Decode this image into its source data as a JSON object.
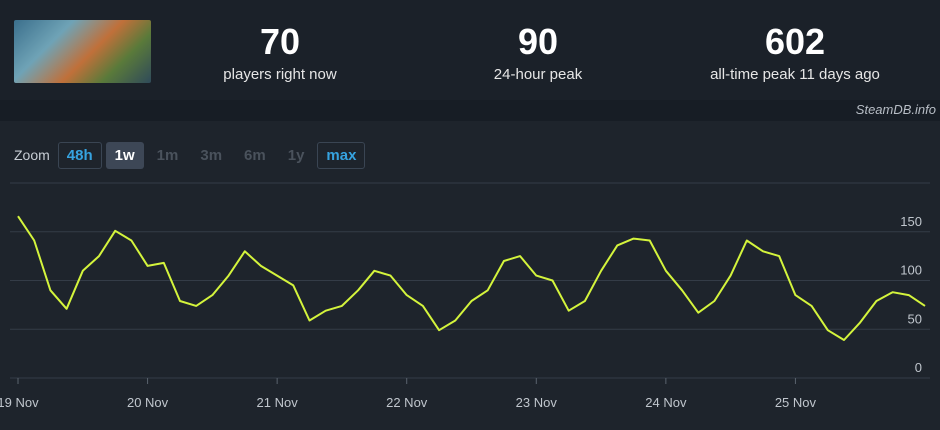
{
  "header": {
    "stats": [
      {
        "value": "70",
        "label": "players right now"
      },
      {
        "value": "90",
        "label": "24-hour peak"
      },
      {
        "value": "602",
        "label": "all-time peak 11 days ago"
      }
    ],
    "watermark": "SteamDB.info"
  },
  "zoom": {
    "label": "Zoom",
    "options": [
      "48h",
      "1w",
      "1m",
      "3m",
      "6m",
      "1y",
      "max"
    ]
  },
  "chart_data": {
    "type": "line",
    "categories": [
      "19 Nov",
      null,
      null,
      null,
      null,
      null,
      null,
      null,
      "20 Nov",
      null,
      null,
      null,
      null,
      null,
      null,
      null,
      "21 Nov",
      null,
      null,
      null,
      null,
      null,
      null,
      null,
      "22 Nov",
      null,
      null,
      null,
      null,
      null,
      null,
      null,
      "23 Nov",
      null,
      null,
      null,
      null,
      null,
      null,
      null,
      "24 Nov",
      null,
      null,
      null,
      null,
      null,
      null,
      null,
      "25 Nov",
      null,
      null,
      null,
      null,
      null,
      null,
      null,
      null
    ],
    "series": [
      {
        "name": "Players",
        "color": "#d4f43c",
        "values": [
          166,
          141,
          90,
          71,
          110,
          125,
          151,
          141,
          115,
          118,
          79,
          74,
          85,
          105,
          130,
          115,
          105,
          95,
          59,
          69,
          74,
          90,
          110,
          105,
          85,
          74,
          49,
          59,
          79,
          90,
          120,
          125,
          105,
          100,
          69,
          79,
          110,
          136,
          143,
          141,
          110,
          90,
          67,
          79,
          105,
          141,
          130,
          125,
          85,
          74,
          49,
          39,
          57,
          79,
          88,
          85,
          74
        ]
      }
    ],
    "ylim": [
      0,
      200
    ],
    "yticks": [
      0,
      50,
      100,
      150
    ],
    "grid": true
  }
}
